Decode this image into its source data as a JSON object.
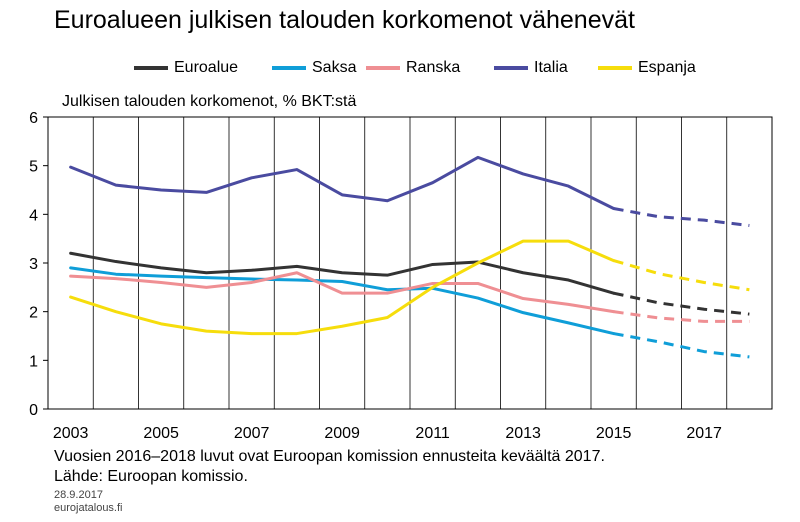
{
  "chart_data": {
    "type": "line",
    "title": "Euroalueen julkisen talouden korkomenot vähenevät",
    "ylabel": "Julkisen talouden korkomenot, % BKT:stä",
    "xlabel": "",
    "x": [
      2003,
      2004,
      2005,
      2006,
      2007,
      2008,
      2009,
      2010,
      2011,
      2012,
      2013,
      2014,
      2015,
      2016,
      2017,
      2018
    ],
    "x_tick_labels": [
      "2003",
      "2005",
      "2007",
      "2009",
      "2011",
      "2013",
      "2015",
      "2017"
    ],
    "y_tick_labels": [
      "0",
      "1",
      "2",
      "3",
      "4",
      "5",
      "6"
    ],
    "ylim": [
      0,
      6
    ],
    "xlim": [
      2002.5,
      2018.5
    ],
    "forecast_from": 2015,
    "grid": "vertical",
    "legend": "top",
    "series": [
      {
        "name": "Euroalue",
        "color": "#333333",
        "values": [
          3.2,
          3.03,
          2.9,
          2.8,
          2.85,
          2.93,
          2.8,
          2.75,
          2.97,
          3.02,
          2.8,
          2.65,
          2.38,
          2.18,
          2.05,
          1.95
        ]
      },
      {
        "name": "Saksa",
        "color": "#0f9ed8",
        "values": [
          2.9,
          2.77,
          2.73,
          2.7,
          2.67,
          2.65,
          2.62,
          2.45,
          2.48,
          2.28,
          1.98,
          1.77,
          1.55,
          1.38,
          1.18,
          1.07
        ]
      },
      {
        "name": "Ranska",
        "color": "#ef8f93",
        "values": [
          2.73,
          2.68,
          2.6,
          2.5,
          2.6,
          2.8,
          2.38,
          2.38,
          2.58,
          2.58,
          2.27,
          2.15,
          2.0,
          1.87,
          1.8,
          1.8
        ]
      },
      {
        "name": "Italia",
        "color": "#4a4ba0",
        "values": [
          4.97,
          4.6,
          4.5,
          4.45,
          4.75,
          4.92,
          4.4,
          4.28,
          4.65,
          5.17,
          4.83,
          4.58,
          4.12,
          3.95,
          3.88,
          3.77
        ]
      },
      {
        "name": "Espanja",
        "color": "#f6dd0c",
        "values": [
          2.3,
          2.0,
          1.75,
          1.6,
          1.55,
          1.55,
          1.7,
          1.88,
          2.5,
          3.0,
          3.45,
          3.45,
          3.05,
          2.78,
          2.6,
          2.45
        ]
      }
    ]
  },
  "footer": {
    "note": "Vuosien 2016–2018 luvut ovat Euroopan komission ennusteita keväältä 2017.",
    "source": "Lähde: Euroopan komissio.",
    "date": "28.9.2017",
    "site": "eurojatalous.fi"
  }
}
